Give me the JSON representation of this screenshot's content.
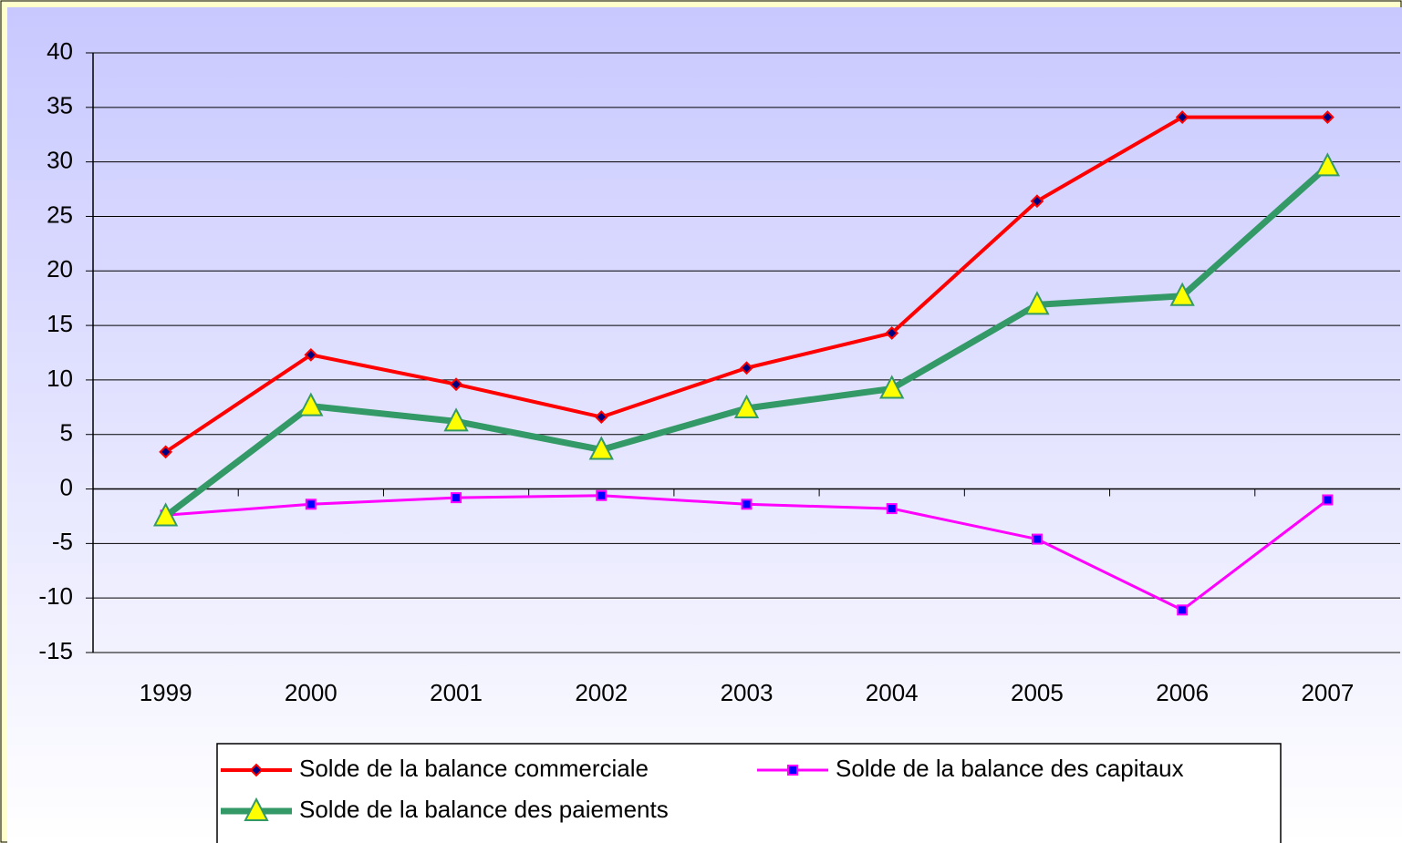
{
  "chart_data": {
    "type": "line",
    "categories": [
      "1999",
      "2000",
      "2001",
      "2002",
      "2003",
      "2004",
      "2005",
      "2006",
      "2007"
    ],
    "series": [
      {
        "name": "Solde de la balance commerciale",
        "color": "#ff0000",
        "marker": "diamond",
        "marker_fill": "#000080",
        "values": [
          3.4,
          12.3,
          9.6,
          6.6,
          11.1,
          14.3,
          26.4,
          34.1,
          34.1
        ]
      },
      {
        "name": "Solde de la balance des capitaux",
        "color": "#ff00ff",
        "marker": "square",
        "marker_fill": "#0000ff",
        "values": [
          -2.4,
          -1.4,
          -0.8,
          -0.6,
          -1.4,
          -1.8,
          -4.6,
          -11.1,
          -1.0
        ]
      },
      {
        "name": "Solde de la balance des paiements",
        "color": "#339966",
        "marker": "triangle",
        "marker_fill": "#ffff00",
        "values": [
          -2.5,
          7.6,
          6.2,
          3.6,
          7.4,
          9.2,
          16.9,
          17.7,
          29.6
        ]
      }
    ],
    "ylim": [
      -15,
      40
    ],
    "yticks": [
      -15,
      -10,
      -5,
      0,
      5,
      10,
      15,
      20,
      25,
      30,
      35,
      40
    ],
    "grid": true
  }
}
